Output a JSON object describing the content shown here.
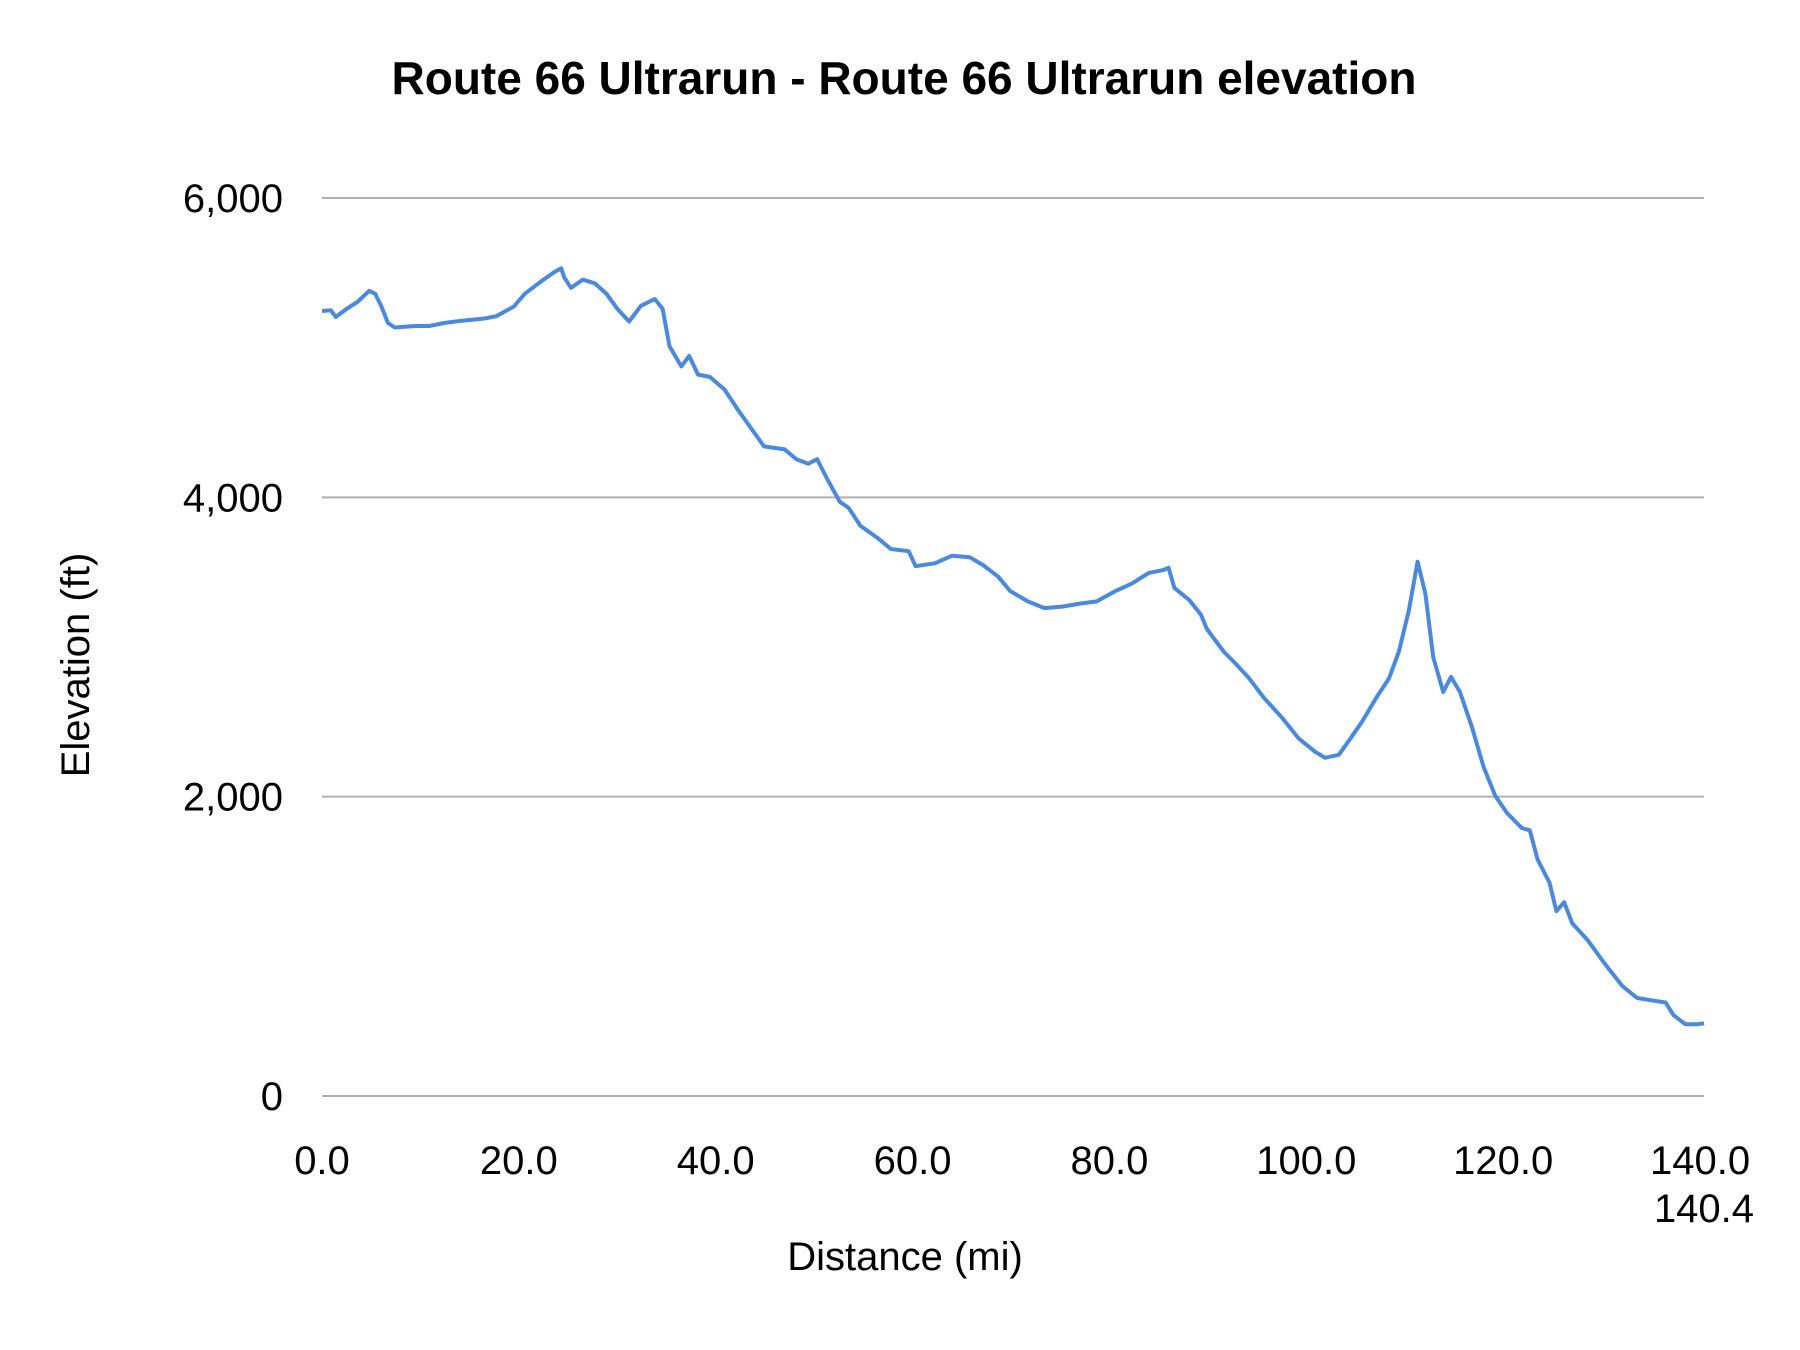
{
  "chart_data": {
    "type": "line",
    "title": "Route 66 Ultrarun - Route 66 Ultrarun elevation",
    "xlabel": "Distance (mi)",
    "ylabel": "Elevation (ft)",
    "xlim": [
      0,
      140.4
    ],
    "ylim": [
      0,
      6000
    ],
    "x_ticks": [
      "0.0",
      "20.0",
      "40.0",
      "60.0",
      "80.0",
      "100.0",
      "120.0",
      "140.0",
      "140.4"
    ],
    "x_tick_values": [
      0,
      20,
      40,
      60,
      80,
      100,
      120,
      140,
      140.4
    ],
    "y_ticks": [
      "0",
      "2,000",
      "4,000",
      "6,000"
    ],
    "y_tick_values": [
      0,
      2000,
      4000,
      6000
    ],
    "grid": "horizontal",
    "legend": "none",
    "line_color": "#4a89dc",
    "grid_color": "#b0b0b0",
    "series": [
      {
        "x": [
          0,
          0.9,
          1.4,
          2.5,
          3.6,
          4.8,
          5.4,
          6.0,
          6.7,
          7.4,
          9.5,
          10.9,
          12.4,
          14.2,
          16.5,
          17.7,
          19.5,
          20.6,
          22.4,
          23.6,
          24.3,
          24.6,
          25.3,
          26.5,
          27.7,
          28.9,
          30.0,
          31.2,
          32.4,
          33.8,
          34.6,
          35.3,
          36.5,
          37.3,
          38.2,
          39.4,
          40.9,
          42.3,
          43.5,
          44.9,
          47.0,
          48.2,
          49.4,
          50.3,
          51.3,
          52.6,
          53.5,
          54.7,
          56.4,
          57.8,
          59.6,
          60.3,
          62.3,
          64.0,
          65.8,
          67.2,
          68.7,
          69.9,
          71.7,
          73.4,
          75.2,
          77.0,
          78.7,
          80.5,
          82.3,
          84.0,
          85.5,
          86.0,
          86.6,
          88.1,
          89.3,
          89.9,
          91.6,
          92.8,
          94.2,
          95.7,
          97.5,
          99.2,
          100.9,
          101.9,
          103.3,
          104.5,
          105.7,
          107.1,
          108.4,
          109.4,
          110.4,
          111.3,
          112.1,
          112.9,
          113.9,
          114.7,
          115.6,
          116.8,
          118.0,
          119.2,
          120.4,
          121.9,
          122.7,
          123.5,
          124.7,
          125.4,
          126.2,
          127.0,
          128.6,
          130.3,
          132.1,
          133.6,
          135.0,
          136.5,
          137.3,
          138.5,
          139.7,
          140.4
        ],
        "y": [
          5245,
          5250,
          5205,
          5260,
          5305,
          5380,
          5360,
          5280,
          5165,
          5135,
          5145,
          5145,
          5165,
          5180,
          5195,
          5210,
          5275,
          5360,
          5450,
          5505,
          5530,
          5470,
          5400,
          5455,
          5430,
          5360,
          5260,
          5175,
          5280,
          5325,
          5260,
          5010,
          4875,
          4945,
          4820,
          4805,
          4720,
          4580,
          4470,
          4340,
          4320,
          4255,
          4225,
          4255,
          4125,
          3970,
          3930,
          3810,
          3730,
          3655,
          3640,
          3540,
          3560,
          3610,
          3600,
          3545,
          3470,
          3375,
          3305,
          3260,
          3270,
          3290,
          3305,
          3370,
          3425,
          3495,
          3515,
          3530,
          3395,
          3315,
          3215,
          3120,
          2970,
          2890,
          2790,
          2660,
          2530,
          2390,
          2300,
          2260,
          2280,
          2390,
          2505,
          2660,
          2790,
          2970,
          3240,
          3570,
          3355,
          2930,
          2700,
          2800,
          2700,
          2470,
          2200,
          2005,
          1890,
          1790,
          1775,
          1580,
          1425,
          1235,
          1295,
          1155,
          1040,
          885,
          735,
          655,
          640,
          625,
          540,
          480,
          480,
          485
        ]
      }
    ]
  }
}
